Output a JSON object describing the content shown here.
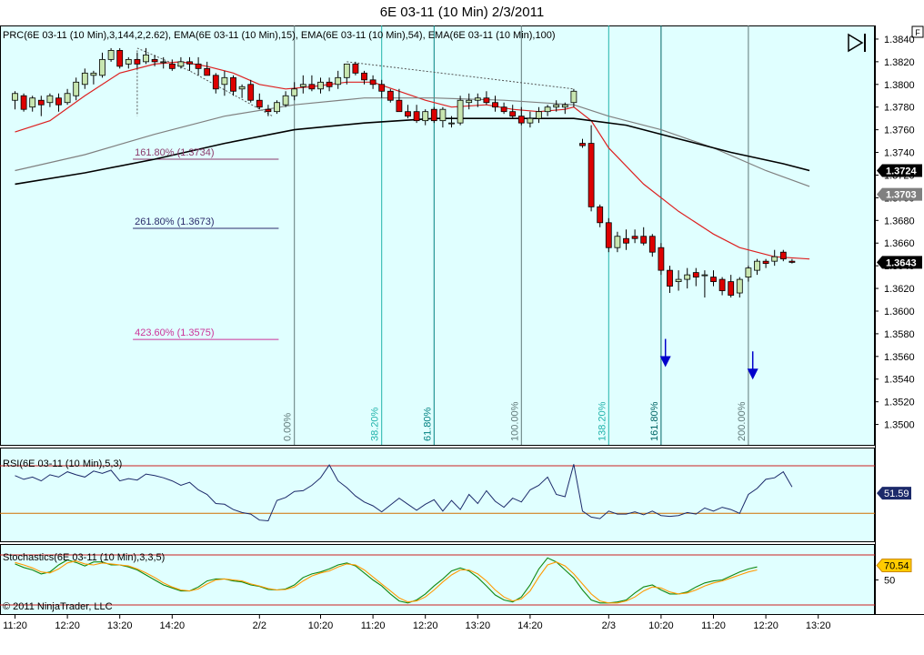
{
  "window": {
    "title": "6E 03-11 (10 Min)  2/3/2011",
    "corner_button": "F"
  },
  "colors": {
    "background": "#e0ffff",
    "up": "#c8e6b0",
    "down": "#dd0000",
    "ema15": "#dd2020",
    "ema54": "#808080",
    "ema100": "#000000",
    "rsi": "#1c2a6a",
    "stoch_k": "#118811",
    "stoch_d": "#ff9900",
    "arrow": "#0000cc",
    "fib_line": "#607878"
  },
  "chart_data": [
    {
      "type": "candlestick",
      "panel": "price",
      "title": "PRC(6E 03-11 (10 Min),3,144,2,2.62), EMA(6E 03-11 (10 Min),15), EMA(6E 03-11 (10 Min),54), EMA(6E 03-11 (10 Min),100)",
      "ylim": [
        1.3482,
        1.3852
      ],
      "yticks": [
        "1.3840",
        "1.3820",
        "1.3800",
        "1.3780",
        "1.3760",
        "1.3740",
        "1.3720",
        "1.3700",
        "1.3680",
        "1.3660",
        "1.3640",
        "1.3620",
        "1.3600",
        "1.3580",
        "1.3560",
        "1.3540",
        "1.3520",
        "1.3500"
      ],
      "xticks": [
        "11:20",
        "12:20",
        "13:20",
        "14:20",
        "2/2",
        "10:20",
        "11:20",
        "12:20",
        "13:20",
        "14:20",
        "2/3",
        "10:20",
        "11:20",
        "12:20",
        "13:20"
      ],
      "candles": [
        [
          1.3786,
          1.3794,
          1.3778,
          1.3792
        ],
        [
          1.379,
          1.3792,
          1.3776,
          1.3778
        ],
        [
          1.378,
          1.379,
          1.3776,
          1.3788
        ],
        [
          1.3786,
          1.379,
          1.3772,
          1.3782
        ],
        [
          1.3784,
          1.3792,
          1.378,
          1.379
        ],
        [
          1.3788,
          1.3792,
          1.3776,
          1.3782
        ],
        [
          1.3784,
          1.3796,
          1.3782,
          1.3792
        ],
        [
          1.379,
          1.3806,
          1.3786,
          1.3802
        ],
        [
          1.38,
          1.3814,
          1.3796,
          1.381
        ],
        [
          1.3808,
          1.3812,
          1.38,
          1.381
        ],
        [
          1.3808,
          1.3828,
          1.3806,
          1.3822
        ],
        [
          1.3822,
          1.3832,
          1.382,
          1.383
        ],
        [
          1.383,
          1.3832,
          1.3814,
          1.3816
        ],
        [
          1.3818,
          1.3824,
          1.3814,
          1.3822
        ],
        [
          1.3822,
          1.3828,
          1.3814,
          1.3818
        ],
        [
          1.382,
          1.3832,
          1.3818,
          1.3826
        ],
        [
          1.3822,
          1.3826,
          1.3816,
          1.382
        ],
        [
          1.382,
          1.3824,
          1.3814,
          1.382
        ],
        [
          1.3818,
          1.3822,
          1.3812,
          1.3814
        ],
        [
          1.3816,
          1.3824,
          1.3814,
          1.382
        ],
        [
          1.382,
          1.3824,
          1.3812,
          1.3818
        ],
        [
          1.3818,
          1.3824,
          1.3808,
          1.3814
        ],
        [
          1.3814,
          1.382,
          1.381,
          1.3808
        ],
        [
          1.3808,
          1.381,
          1.3792,
          1.3796
        ],
        [
          1.38,
          1.3812,
          1.379,
          1.3806
        ],
        [
          1.3806,
          1.3808,
          1.379,
          1.3794
        ],
        [
          1.3796,
          1.38,
          1.3788,
          1.3798
        ],
        [
          1.38,
          1.3804,
          1.3784,
          1.3786
        ],
        [
          1.3786,
          1.3792,
          1.3778,
          1.378
        ],
        [
          1.3778,
          1.3782,
          1.3772,
          1.3776
        ],
        [
          1.3776,
          1.3786,
          1.3774,
          1.3784
        ],
        [
          1.3782,
          1.3794,
          1.378,
          1.379
        ],
        [
          1.379,
          1.3802,
          1.3786,
          1.3796
        ],
        [
          1.3798,
          1.3808,
          1.3792,
          1.38
        ],
        [
          1.38,
          1.3808,
          1.3794,
          1.3796
        ],
        [
          1.3796,
          1.3806,
          1.3792,
          1.3802
        ],
        [
          1.3802,
          1.3806,
          1.3794,
          1.3798
        ],
        [
          1.38,
          1.3812,
          1.3796,
          1.3806
        ],
        [
          1.3806,
          1.3818,
          1.38,
          1.3818
        ],
        [
          1.3818,
          1.382,
          1.3808,
          1.381
        ],
        [
          1.381,
          1.3812,
          1.38,
          1.3804
        ],
        [
          1.3804,
          1.3808,
          1.3796,
          1.38
        ],
        [
          1.38,
          1.3804,
          1.3788,
          1.3794
        ],
        [
          1.3794,
          1.3796,
          1.3784,
          1.3786
        ],
        [
          1.3786,
          1.3796,
          1.3778,
          1.3776
        ],
        [
          1.3776,
          1.3782,
          1.377,
          1.3772
        ],
        [
          1.3776,
          1.3782,
          1.3766,
          1.3768
        ],
        [
          1.3768,
          1.3778,
          1.3764,
          1.3776
        ],
        [
          1.3778,
          1.378,
          1.3766,
          1.3768
        ],
        [
          1.3768,
          1.378,
          1.3762,
          1.3778
        ],
        [
          1.3766,
          1.3772,
          1.3762,
          1.3766
        ],
        [
          1.3766,
          1.379,
          1.3764,
          1.3786
        ],
        [
          1.3784,
          1.3792,
          1.3778,
          1.3786
        ],
        [
          1.3786,
          1.3792,
          1.378,
          1.3788
        ],
        [
          1.3788,
          1.3794,
          1.3782,
          1.3784
        ],
        [
          1.3784,
          1.379,
          1.3776,
          1.378
        ],
        [
          1.378,
          1.3784,
          1.3774,
          1.3776
        ],
        [
          1.3776,
          1.3782,
          1.377,
          1.3772
        ],
        [
          1.3772,
          1.378,
          1.3764,
          1.3766
        ],
        [
          1.3766,
          1.3776,
          1.3762,
          1.377
        ],
        [
          1.377,
          1.378,
          1.3766,
          1.3776
        ],
        [
          1.3776,
          1.3782,
          1.3772,
          1.378
        ],
        [
          1.378,
          1.3786,
          1.3776,
          1.3782
        ],
        [
          1.378,
          1.3784,
          1.3774,
          1.3782
        ],
        [
          1.3784,
          1.3796,
          1.378,
          1.3794
        ],
        [
          1.3748,
          1.3752,
          1.3744,
          1.3746
        ],
        [
          1.3748,
          1.3764,
          1.3688,
          1.3692
        ],
        [
          1.3692,
          1.3694,
          1.3674,
          1.3678
        ],
        [
          1.3678,
          1.3682,
          1.3652,
          1.3656
        ],
        [
          1.3656,
          1.367,
          1.3652,
          1.3666
        ],
        [
          1.3664,
          1.3672,
          1.3654,
          1.366
        ],
        [
          1.3666,
          1.3672,
          1.366,
          1.3664
        ],
        [
          1.3666,
          1.3674,
          1.3658,
          1.366
        ],
        [
          1.3666,
          1.3668,
          1.3648,
          1.3652
        ],
        [
          1.3656,
          1.366,
          1.3632,
          1.3636
        ],
        [
          1.3636,
          1.364,
          1.3616,
          1.3622
        ],
        [
          1.3626,
          1.3636,
          1.3618,
          1.3628
        ],
        [
          1.3628,
          1.3638,
          1.362,
          1.3632
        ],
        [
          1.3634,
          1.3638,
          1.3622,
          1.363
        ],
        [
          1.3632,
          1.3636,
          1.3612,
          1.3632
        ],
        [
          1.363,
          1.3636,
          1.3622,
          1.3626
        ],
        [
          1.3628,
          1.363,
          1.3614,
          1.3618
        ],
        [
          1.3626,
          1.3632,
          1.3612,
          1.3614
        ],
        [
          1.3616,
          1.363,
          1.3612,
          1.3628
        ],
        [
          1.363,
          1.364,
          1.3626,
          1.3638
        ],
        [
          1.3636,
          1.3646,
          1.3632,
          1.3644
        ],
        [
          1.3644,
          1.3646,
          1.3638,
          1.3642
        ],
        [
          1.3644,
          1.3654,
          1.364,
          1.3648
        ],
        [
          1.3652,
          1.3654,
          1.3644,
          1.3646
        ],
        [
          1.3644,
          1.3646,
          1.3642,
          1.3643
        ]
      ],
      "ema_series": [
        {
          "name": "EMA(6E 03-11 (10 Min),15)",
          "points": [
            [
              0,
              1.3758
            ],
            [
              4,
              1.3768
            ],
            [
              8,
              1.379
            ],
            [
              12,
              1.381
            ],
            [
              16,
              1.3818
            ],
            [
              19,
              1.382
            ],
            [
              22,
              1.3816
            ],
            [
              25,
              1.381
            ],
            [
              28,
              1.38
            ],
            [
              31,
              1.3796
            ],
            [
              34,
              1.3798
            ],
            [
              38,
              1.3802
            ],
            [
              41,
              1.3802
            ],
            [
              44,
              1.3794
            ],
            [
              47,
              1.3786
            ],
            [
              50,
              1.378
            ],
            [
              54,
              1.3782
            ],
            [
              57,
              1.3778
            ],
            [
              60,
              1.3776
            ],
            [
              63,
              1.3778
            ],
            [
              64,
              1.378
            ],
            [
              66,
              1.3768
            ],
            [
              68,
              1.3744
            ],
            [
              72,
              1.3712
            ],
            [
              76,
              1.3688
            ],
            [
              80,
              1.3668
            ],
            [
              83,
              1.3656
            ],
            [
              87,
              1.3648
            ],
            [
              91,
              1.3646
            ]
          ]
        },
        {
          "name": "EMA(6E 03-11 (10 Min),54)",
          "points": [
            [
              0,
              1.3724
            ],
            [
              8,
              1.3738
            ],
            [
              16,
              1.3756
            ],
            [
              24,
              1.3772
            ],
            [
              32,
              1.3782
            ],
            [
              40,
              1.3788
            ],
            [
              48,
              1.3788
            ],
            [
              56,
              1.3786
            ],
            [
              64,
              1.3782
            ],
            [
              68,
              1.3772
            ],
            [
              74,
              1.376
            ],
            [
              80,
              1.3744
            ],
            [
              86,
              1.3724
            ],
            [
              91,
              1.371
            ]
          ]
        },
        {
          "name": "EMA(6E 03-11 (10 Min),100)",
          "points": [
            [
              0,
              1.3712
            ],
            [
              8,
              1.3722
            ],
            [
              16,
              1.3734
            ],
            [
              24,
              1.3748
            ],
            [
              32,
              1.376
            ],
            [
              40,
              1.3766
            ],
            [
              48,
              1.377
            ],
            [
              56,
              1.377
            ],
            [
              64,
              1.377
            ],
            [
              70,
              1.3764
            ],
            [
              76,
              1.3752
            ],
            [
              82,
              1.374
            ],
            [
              88,
              1.373
            ],
            [
              91,
              1.3724
            ]
          ]
        }
      ],
      "price_labels": [
        {
          "text": "1.3724",
          "value": 1.3724,
          "bg": "#000000",
          "fg": "#ffffff"
        },
        {
          "text": "1.3703",
          "value": 1.3703,
          "bg": "#808080",
          "fg": "#ffffff"
        },
        {
          "text": "1.3643",
          "value": 1.3643,
          "bg": "#000000",
          "fg": "#ffffff"
        }
      ],
      "fib_extensions": [
        {
          "label": "161.80% (1.3734)",
          "value": 1.3734,
          "color": "#8b3a6b"
        },
        {
          "label": "261.80% (1.3673)",
          "value": 1.3673,
          "color": "#2b2b6b"
        },
        {
          "label": "423.60% (1.3575)",
          "value": 1.3575,
          "color": "#cc3399"
        }
      ],
      "fib_time_lines": [
        {
          "label": "0.00%",
          "bar": 32,
          "color": "#607878"
        },
        {
          "label": "38.20%",
          "bar": 42,
          "color": "#20b2aa"
        },
        {
          "label": "61.80%",
          "bar": 48,
          "color": "#008080"
        },
        {
          "label": "100.00%",
          "bar": 58,
          "color": "#607878"
        },
        {
          "label": "138.20%",
          "bar": 68,
          "color": "#20b2aa"
        },
        {
          "label": "161.80%",
          "bar": 74,
          "color": "#006464"
        },
        {
          "label": "200.00%",
          "bar": 84,
          "color": "#607878"
        }
      ],
      "arrows": [
        {
          "bar": 74.5,
          "value": 1.3553
        },
        {
          "bar": 84.5,
          "value": 1.3542
        }
      ]
    },
    {
      "type": "line",
      "panel": "rsi",
      "title": "RSI(6E 03-11 (10 Min),5,3)",
      "ylim": [
        0,
        100
      ],
      "bands": [
        88,
        25
      ],
      "last_label": "51.59",
      "values": [
        75,
        70,
        73,
        68,
        76,
        73,
        80,
        76,
        73,
        81,
        78,
        82,
        68,
        71,
        69,
        77,
        75,
        72,
        68,
        62,
        66,
        56,
        50,
        38,
        37,
        30,
        26,
        24,
        16,
        15,
        42,
        46,
        54,
        55,
        62,
        72,
        89,
        68,
        59,
        48,
        40,
        35,
        27,
        36,
        45,
        37,
        29,
        37,
        43,
        28,
        42,
        30,
        50,
        38,
        55,
        41,
        33,
        45,
        40,
        56,
        62,
        73,
        50,
        47,
        90,
        28,
        20,
        18,
        28,
        24,
        24,
        27,
        23,
        28,
        22,
        21,
        22,
        26,
        24,
        32,
        28,
        33,
        30,
        25,
        50,
        58,
        70,
        72,
        80,
        60
      ]
    },
    {
      "type": "line",
      "panel": "stochastics",
      "title": "Stochastics(6E 03-11 (10 Min),3,3,5)",
      "ylim": [
        0,
        100
      ],
      "bands": [
        100,
        0
      ],
      "yticks": [
        "50"
      ],
      "last_label": "70.54",
      "series": [
        {
          "name": "K",
          "values": [
            82,
            75,
            70,
            62,
            66,
            80,
            90,
            85,
            78,
            86,
            86,
            80,
            80,
            76,
            70,
            60,
            50,
            40,
            34,
            28,
            28,
            36,
            48,
            52,
            52,
            48,
            46,
            40,
            37,
            31,
            30,
            32,
            40,
            55,
            62,
            66,
            72,
            80,
            84,
            78,
            64,
            50,
            38,
            22,
            8,
            4,
            10,
            22,
            38,
            52,
            68,
            74,
            68,
            55,
            38,
            20,
            10,
            6,
            16,
            40,
            72,
            94,
            86,
            70,
            54,
            30,
            10,
            4,
            4,
            6,
            10,
            24,
            36,
            40,
            30,
            22,
            22,
            26,
            36,
            44,
            48,
            50,
            58,
            66,
            72,
            76
          ]
        },
        {
          "name": "D",
          "values": [
            85,
            80,
            74,
            66,
            64,
            72,
            84,
            88,
            82,
            80,
            84,
            82,
            80,
            78,
            72,
            64,
            55,
            44,
            36,
            30,
            28,
            32,
            42,
            50,
            52,
            50,
            48,
            42,
            38,
            33,
            30,
            31,
            36,
            48,
            58,
            64,
            68,
            76,
            82,
            80,
            70,
            56,
            42,
            28,
            14,
            6,
            8,
            16,
            30,
            46,
            60,
            70,
            70,
            62,
            48,
            30,
            16,
            8,
            12,
            28,
            56,
            80,
            86,
            78,
            62,
            42,
            22,
            8,
            4,
            4,
            8,
            16,
            28,
            36,
            34,
            26,
            22,
            24,
            30,
            38,
            44,
            48,
            54,
            60,
            66,
            70
          ]
        }
      ]
    }
  ],
  "footer": {
    "copyright": "© 2011 NinjaTrader, LLC"
  }
}
